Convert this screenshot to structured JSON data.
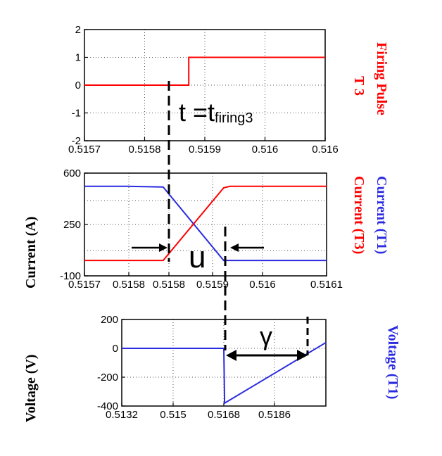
{
  "colors": {
    "red": "#ff0000",
    "blue": "#2a2ae0",
    "axis": "#000000",
    "grid": "#555555"
  },
  "annotations": {
    "t_main": "t =t",
    "t_sub": "firing3",
    "overlap": "u",
    "gamma": "γ"
  },
  "chart_data": [
    {
      "type": "line",
      "right_label_1": "Firing Pulse",
      "right_label_2": "T 3",
      "xlim": [
        0.5157,
        0.516
      ],
      "ylim": [
        -2,
        2
      ],
      "xticks": [
        "0.5157",
        "0.5158",
        "0.5159",
        "0.516",
        "0.516"
      ],
      "yticks": [
        "2",
        "1",
        "0",
        "-1",
        "-2"
      ],
      "grid": true,
      "series": [
        {
          "color": "red",
          "x": [
            0.5157,
            0.51583,
            0.51583,
            0.516
          ],
          "y": [
            0,
            0,
            1,
            1
          ]
        }
      ]
    },
    {
      "type": "line",
      "ylabel": "Current (A)",
      "right_label_blue": "Current (T1)",
      "right_label_red": "Current (T3)",
      "xlim": [
        0.5157,
        0.5161
      ],
      "ylim": [
        -100,
        600
      ],
      "xticks": [
        "0.5157",
        "0.5158",
        "0.5158",
        "0.5159",
        "0.516",
        "0.5161"
      ],
      "yticks": [
        "600",
        "250",
        "-100"
      ],
      "grid": true,
      "series": [
        {
          "color": "blue",
          "x": [
            0.5157,
            0.51577,
            0.51583,
            0.51593,
            0.5161
          ],
          "y": [
            510,
            510,
            505,
            5,
            5
          ]
        },
        {
          "color": "red",
          "x": [
            0.5157,
            0.51583,
            0.51593,
            0.51594,
            0.5161
          ],
          "y": [
            5,
            5,
            500,
            510,
            510
          ]
        }
      ]
    },
    {
      "type": "line",
      "ylabel": "Voltage (V)",
      "right_label": "Voltage (T1)",
      "xlim": [
        0.5132,
        0.5186
      ],
      "ylim": [
        -400,
        200
      ],
      "xticks": [
        "0.5132",
        "0.515",
        "0.5168",
        "0.5186"
      ],
      "yticks": [
        "200",
        "0",
        "-200",
        "-400"
      ],
      "grid": true,
      "series": [
        {
          "color": "blue",
          "x": [
            0.5132,
            0.5159,
            0.51592,
            0.5186
          ],
          "y": [
            0,
            0,
            -380,
            40
          ]
        }
      ]
    }
  ]
}
